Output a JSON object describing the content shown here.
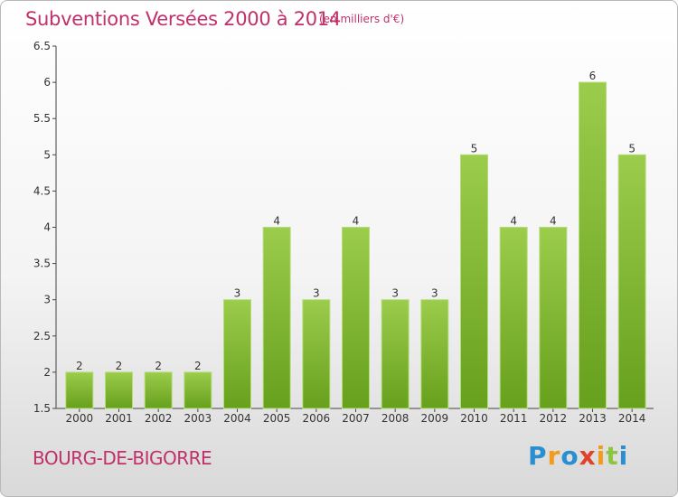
{
  "header": {
    "title": "Subventions Versées 2000 à 2014",
    "subtitle": "(en milliers d'€)"
  },
  "footer": {
    "place": "BOURG-DE-BIGORRE",
    "logo": "Proxiti"
  },
  "colors": {
    "title": "#c0306a",
    "bar_top": "#9ccc4c",
    "bar_bottom": "#66a01c"
  },
  "chart_data": {
    "type": "bar",
    "title": "Subventions Versées 2000 à 2014",
    "subtitle": "(en milliers d'€)",
    "categories": [
      "2000",
      "2001",
      "2002",
      "2003",
      "2004",
      "2005",
      "2006",
      "2007",
      "2008",
      "2009",
      "2010",
      "2011",
      "2012",
      "2013",
      "2014"
    ],
    "values": [
      2,
      2,
      2,
      2,
      3,
      4,
      3,
      4,
      3,
      3,
      5,
      4,
      4,
      6,
      5
    ],
    "data_labels": [
      "2",
      "2",
      "2",
      "2",
      "3",
      "4",
      "3",
      "4",
      "3",
      "3",
      "5",
      "4",
      "4",
      "6",
      "5"
    ],
    "ylim": [
      1.5,
      6.5
    ],
    "yticks": [
      1.5,
      2,
      2.5,
      3,
      3.5,
      4,
      4.5,
      5,
      5.5,
      6,
      6.5
    ],
    "ytick_labels": [
      "1.5",
      "2",
      "2.5",
      "3",
      "3.5",
      "4",
      "4.5",
      "5",
      "5.5",
      "6",
      "6.5"
    ],
    "grid": false,
    "legend": "none"
  }
}
